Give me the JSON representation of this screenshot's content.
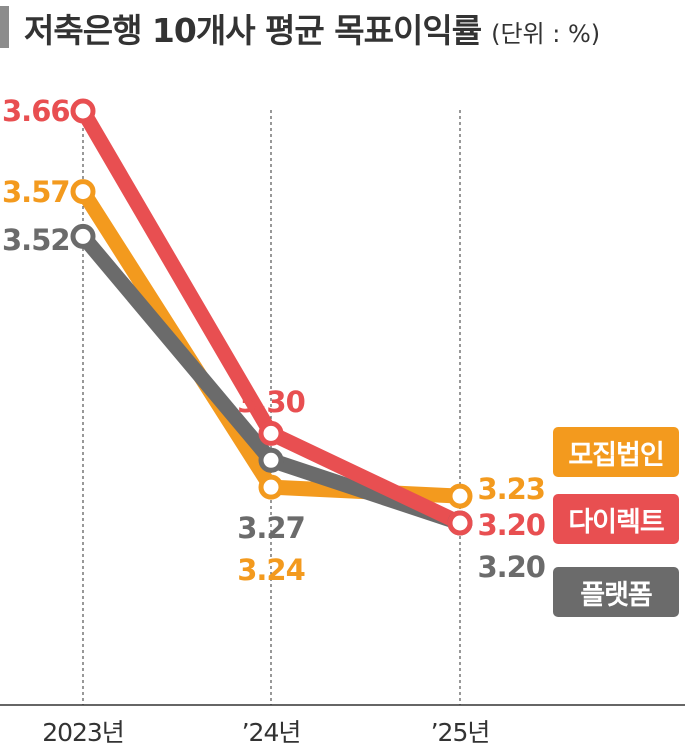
{
  "chart_data": {
    "type": "line",
    "title": "저축은행 10개사 평균 목표이익률",
    "unit_label": "(단위 : %)",
    "categories": [
      "2023년",
      "’24년",
      "’25년"
    ],
    "series": [
      {
        "name": "모집법인",
        "color": "#f39a1e",
        "values": [
          3.57,
          3.24,
          3.23
        ],
        "labels": [
          "3.57",
          "3.24",
          "3.23"
        ]
      },
      {
        "name": "다이렉트",
        "color": "#e84f51",
        "values": [
          3.66,
          3.3,
          3.2
        ],
        "labels": [
          "3.66",
          "3.30",
          "3.20"
        ]
      },
      {
        "name": "플랫폼",
        "color": "#6b6b6b",
        "values": [
          3.52,
          3.27,
          3.2
        ],
        "labels": [
          "3.52",
          "3.27",
          "3.20"
        ]
      }
    ],
    "grid": "vertical-dashed",
    "legend": "right"
  }
}
